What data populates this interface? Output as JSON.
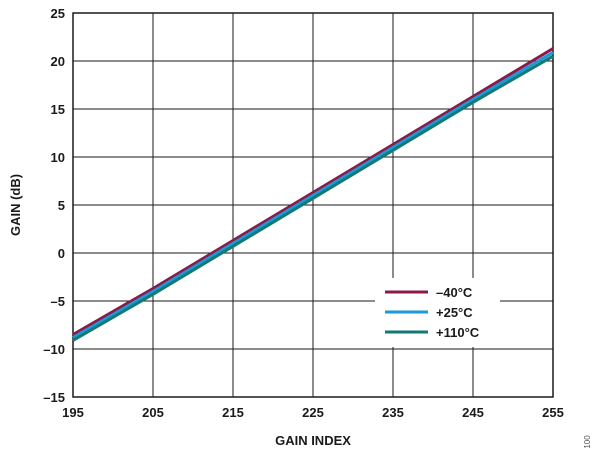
{
  "chart_data": {
    "type": "line",
    "xlabel": "GAIN INDEX",
    "ylabel": "GAIN (dB)",
    "xlim": [
      195,
      255
    ],
    "ylim": [
      -15,
      25
    ],
    "x_ticks": [
      195,
      205,
      215,
      225,
      235,
      245,
      255
    ],
    "y_ticks": [
      -15,
      -10,
      -5,
      0,
      5,
      10,
      15,
      20,
      25
    ],
    "y_tick_labels": [
      "–15",
      "–10",
      "–5",
      "0",
      "5",
      "10",
      "15",
      "20",
      "25"
    ],
    "grid": true,
    "legend_position": "bottom-right",
    "series": [
      {
        "name": "–40°C",
        "color": "#8b1a4a",
        "x": [
          195,
          205,
          215,
          225,
          235,
          245,
          255
        ],
        "y": [
          -8.5,
          -3.7,
          1.3,
          6.3,
          11.3,
          16.3,
          21.3
        ]
      },
      {
        "name": "+25°C",
        "color": "#1a9ad6",
        "x": [
          195,
          205,
          215,
          225,
          235,
          245,
          255
        ],
        "y": [
          -8.8,
          -4.0,
          1.0,
          6.0,
          11.0,
          16.0,
          20.9
        ]
      },
      {
        "name": "+110°C",
        "color": "#117a74",
        "x": [
          195,
          205,
          215,
          225,
          235,
          245,
          255
        ],
        "y": [
          -9.1,
          -4.3,
          0.7,
          5.7,
          10.7,
          15.7,
          20.5
        ]
      }
    ]
  },
  "side_note": "100"
}
